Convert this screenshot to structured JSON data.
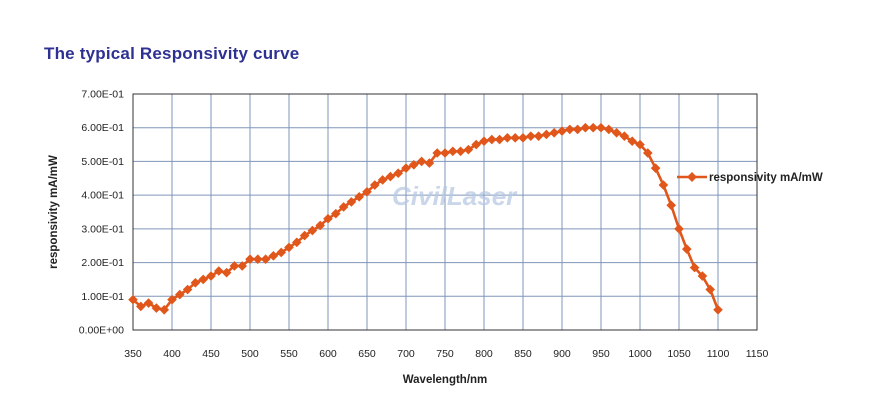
{
  "title": "The typical Responsivity curve",
  "watermark": "CivilLaser",
  "colors": {
    "title": "#2e3192",
    "series": "#e0561b",
    "grid": "#7f96b8",
    "axis": "#333333"
  },
  "chart_data": {
    "type": "line",
    "xlabel": "Wavelength/nm",
    "ylabel": "responsivity mA/mW",
    "xlim": [
      350,
      1150
    ],
    "ylim": [
      0,
      0.7
    ],
    "xticks": [
      350,
      400,
      450,
      500,
      550,
      600,
      650,
      700,
      750,
      800,
      850,
      900,
      950,
      1000,
      1050,
      1100,
      1150
    ],
    "xtick_labels": [
      "350",
      "400",
      "450",
      "500",
      "550",
      "600",
      "650",
      "700",
      "750",
      "800",
      "850",
      "900",
      "950",
      "1000",
      "1050",
      "1100",
      "1150"
    ],
    "yticks": [
      0,
      0.1,
      0.2,
      0.3,
      0.4,
      0.5,
      0.6,
      0.7
    ],
    "ytick_labels": [
      "0.00E+00",
      "1.00E-01",
      "2.00E-01",
      "3.00E-01",
      "4.00E-01",
      "5.00E-01",
      "6.00E-01",
      "7.00E-01"
    ],
    "grid": true,
    "legend_position": "right",
    "series": [
      {
        "name": "responsivity mA/mW",
        "color": "#e0561b",
        "marker": "diamond",
        "x": [
          350,
          360,
          370,
          380,
          390,
          400,
          410,
          420,
          430,
          440,
          450,
          460,
          470,
          480,
          490,
          500,
          510,
          520,
          530,
          540,
          550,
          560,
          570,
          580,
          590,
          600,
          610,
          620,
          630,
          640,
          650,
          660,
          670,
          680,
          690,
          700,
          710,
          720,
          730,
          740,
          750,
          760,
          770,
          780,
          790,
          800,
          810,
          820,
          830,
          840,
          850,
          860,
          870,
          880,
          890,
          900,
          910,
          920,
          930,
          940,
          950,
          960,
          970,
          980,
          990,
          1000,
          1010,
          1020,
          1030,
          1040,
          1050,
          1060,
          1070,
          1080,
          1090,
          1100
        ],
        "y": [
          0.09,
          0.07,
          0.08,
          0.065,
          0.06,
          0.09,
          0.105,
          0.12,
          0.14,
          0.15,
          0.16,
          0.175,
          0.17,
          0.19,
          0.19,
          0.21,
          0.21,
          0.21,
          0.22,
          0.23,
          0.245,
          0.26,
          0.28,
          0.295,
          0.31,
          0.33,
          0.345,
          0.365,
          0.38,
          0.395,
          0.41,
          0.43,
          0.445,
          0.455,
          0.465,
          0.48,
          0.49,
          0.5,
          0.495,
          0.525,
          0.525,
          0.53,
          0.53,
          0.535,
          0.55,
          0.56,
          0.565,
          0.565,
          0.57,
          0.57,
          0.57,
          0.575,
          0.575,
          0.58,
          0.585,
          0.59,
          0.595,
          0.595,
          0.6,
          0.6,
          0.6,
          0.595,
          0.585,
          0.575,
          0.56,
          0.55,
          0.525,
          0.48,
          0.43,
          0.37,
          0.3,
          0.24,
          0.185,
          0.16,
          0.12,
          0.06
        ]
      }
    ]
  }
}
